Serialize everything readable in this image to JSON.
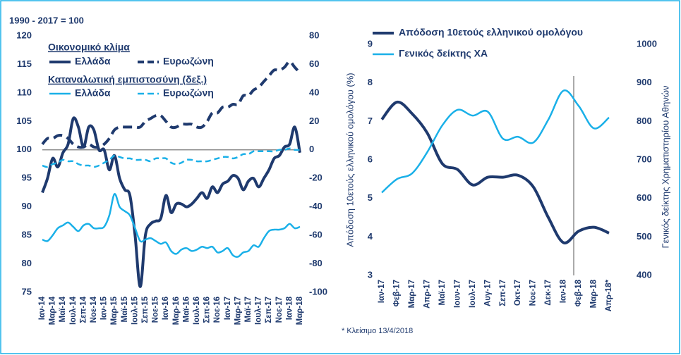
{
  "chart_data": [
    {
      "type": "line",
      "title": "1990 - 2017 = 100",
      "legend_titles": {
        "y": "Οικονομικό κλίμα",
        "y2": "Καταναλωτική εμπιστοσύνη (δεξ.)"
      },
      "categories": [
        "Ιαν-14",
        null,
        "Μαρ-14",
        null,
        "Μαϊ-14",
        null,
        "Ιουλ-14",
        null,
        "Σεπ-14",
        null,
        "Νοε-14",
        null,
        "Ιαν-15",
        null,
        "Μαρ-15",
        null,
        "Μαϊ-15",
        null,
        "Ιουλ-15",
        null,
        "Σεπ-15",
        null,
        "Νοε-15",
        null,
        "Ιαν-16",
        null,
        "Μαρ-16",
        null,
        "Μαϊ-16",
        null,
        "Ιουλ-16",
        null,
        "Σεπ-16",
        null,
        "Νοε-16",
        null,
        "Ιαν-17",
        null,
        "Μαρ-17",
        null,
        "Μαϊ-17",
        null,
        "Ιουλ-17",
        null,
        "Σεπ-17",
        null,
        "Νοε-17",
        null,
        "Ιαν-18",
        null,
        "Μαρ-18"
      ],
      "series": [
        {
          "name": "Ελλάδα",
          "color": "#1f3a6e",
          "dashed": false,
          "axis": "y",
          "values": [
            92.5,
            95,
            98.5,
            97,
            99.5,
            101,
            105.5,
            104,
            100.5,
            104,
            103.5,
            100,
            100,
            96.5,
            99,
            95,
            93,
            92,
            85,
            76,
            85,
            87,
            87.5,
            88,
            92,
            89,
            90.5,
            90.5,
            90,
            90.5,
            91.5,
            92.5,
            91.5,
            93.5,
            92.5,
            94,
            94.5,
            95.5,
            95,
            93,
            94.5,
            95,
            93.5,
            95,
            96.5,
            98.5,
            99,
            100.5,
            101,
            104,
            99.5
          ]
        },
        {
          "name": "Ευρωζώνη",
          "color": "#1f3a6e",
          "dashed": true,
          "axis": "y",
          "values": [
            101,
            102,
            102,
            102.5,
            102.5,
            102,
            101,
            100.5,
            100.5,
            101,
            100.5,
            100.5,
            101,
            102,
            103.5,
            104,
            104,
            104,
            104,
            104,
            105,
            105.5,
            106,
            106,
            105,
            104,
            104,
            104.5,
            104.5,
            104.5,
            104,
            104,
            105,
            106.5,
            106.5,
            107.5,
            107.5,
            108,
            108,
            109.5,
            109.5,
            110.5,
            111,
            112,
            113,
            114,
            114,
            114.5,
            115.5,
            114.5,
            113.5
          ]
        },
        {
          "name": "Ελλάδα",
          "color": "#1ab0e8",
          "dashed": false,
          "axis": "y2",
          "values": [
            -63,
            -64,
            -60,
            -55,
            -53,
            -51,
            -54,
            -57,
            -53,
            -52,
            -55,
            -55,
            -54,
            -46,
            -31,
            -40,
            -43,
            -46,
            -55,
            -64,
            -63,
            -62,
            -64,
            -66,
            -65,
            -71,
            -73,
            -70,
            -69,
            -71,
            -70,
            -68,
            -69,
            -68,
            -72,
            -71,
            -69,
            -74,
            -75,
            -72,
            -71,
            -67,
            -68,
            -62,
            -57,
            -56,
            -56,
            -55,
            -52,
            -55,
            -54
          ]
        },
        {
          "name": "Ευρωζώνη",
          "color": "#1ab0e8",
          "dashed": true,
          "axis": "y2",
          "values": [
            -11,
            -12,
            -10,
            -9,
            -7,
            -8,
            -8,
            -10,
            -11,
            -11,
            -12,
            -11,
            -9,
            -7,
            -4,
            -5,
            -6,
            -6,
            -7,
            -7,
            -7,
            -8,
            -6,
            -6,
            -6,
            -9,
            -10,
            -9,
            -7,
            -7,
            -8,
            -8,
            -8,
            -7,
            -6,
            -5,
            -5,
            -6,
            -5,
            -3,
            -3,
            -1,
            -1,
            -1,
            -1,
            -1,
            0,
            0,
            1,
            0,
            0
          ]
        }
      ],
      "reference_line": 100,
      "ylim": [
        75,
        120
      ],
      "yticks": [
        75,
        80,
        85,
        90,
        95,
        100,
        105,
        110,
        115,
        120
      ],
      "y2lim": [
        -100,
        80
      ],
      "y2ticks": [
        -100,
        -80,
        -60,
        -40,
        -20,
        0,
        20,
        40,
        60,
        80
      ],
      "grid": false
    },
    {
      "type": "line",
      "ylabel": "Απόδοση 10ετούς ελληνικού ομολόγου (%)",
      "y2label": "Γενικός δείκτης Χρηματιστηρίου Αθηνών",
      "footnote": "* Κλείσιμο 13/4/2018",
      "categories": [
        "Ιαν-17",
        "Φεβ-17",
        "Μαρ-17",
        "Απρ-17",
        "Μαϊ-17",
        "Ιουν-17",
        "Ιουλ-17",
        "Αυγ-17",
        "Σεπ-17",
        "Οκτ-17",
        "Νοε-17",
        "Δεκ-17",
        "Ιαν-18",
        "Φεβ-18",
        "Μαρ-18",
        "Απρ-18*"
      ],
      "series": [
        {
          "name": "Απόδοση 10ετούς ελληνικού ομολόγου",
          "color": "#1f3a6e",
          "dashed": false,
          "axis": "y",
          "values": [
            7.05,
            7.5,
            7.2,
            6.7,
            5.9,
            5.75,
            5.35,
            5.55,
            5.55,
            5.6,
            5.3,
            4.5,
            3.85,
            4.15,
            4.25,
            4.1
          ]
        },
        {
          "name": "Γενικός δείκτης ΧΑ",
          "color": "#1ab0e8",
          "dashed": false,
          "axis": "y2",
          "values": [
            615,
            650,
            665,
            720,
            790,
            830,
            815,
            825,
            755,
            760,
            745,
            805,
            880,
            840,
            782,
            810
          ]
        }
      ],
      "ylim": [
        3,
        9
      ],
      "yticks": [
        3,
        4,
        5,
        6,
        7,
        8,
        9
      ],
      "y2lim": [
        400,
        1000
      ],
      "y2ticks": [
        400,
        500,
        600,
        700,
        800,
        900,
        1000
      ],
      "grid": false
    }
  ]
}
